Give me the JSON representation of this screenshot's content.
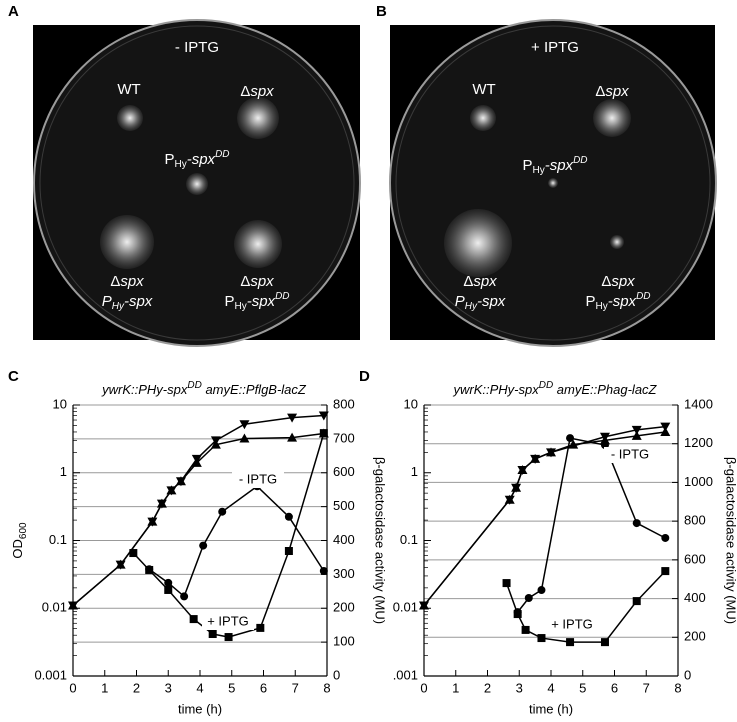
{
  "plates": [
    {
      "letter": "A",
      "condition": "- IPTG",
      "labels": [
        [
          "WT"
        ],
        [
          "Δ",
          "spx"
        ],
        [
          "P",
          "Hy",
          "-",
          "spx",
          "DD"
        ],
        [
          "Δ",
          "spx"
        ],
        [
          "P",
          "Hy",
          "-spx"
        ],
        [
          "Δ",
          "spx"
        ],
        [
          "P",
          "Hy",
          "-",
          "spx",
          "DD"
        ]
      ]
    },
    {
      "letter": "B",
      "condition": "+ IPTG",
      "labels": [
        [
          "WT"
        ],
        [
          "Δ",
          "spx"
        ],
        [
          "P",
          "Hy",
          "-",
          "spx",
          "DD"
        ],
        [
          "Δ",
          "spx"
        ],
        [
          "P",
          "Hy",
          "-spx"
        ],
        [
          "Δ",
          "spx"
        ],
        [
          "P",
          "Hy",
          "-",
          "spx",
          "DD"
        ]
      ]
    }
  ],
  "chart_data": [
    {
      "type": "line",
      "letter": "C",
      "title_parts": [
        "ywrK::PHy-spx",
        "DD",
        " amyE::PflgB-lacZ"
      ],
      "xlabel": "time (h)",
      "ylabel_parts": [
        "OD",
        "600"
      ],
      "y2label": "β-galactosidase activity (MU)",
      "xlim": [
        0,
        8
      ],
      "xticks": [
        0,
        1,
        2,
        3,
        4,
        5,
        6,
        7,
        8
      ],
      "ylim": [
        0.001,
        10
      ],
      "yscale": "log",
      "yticks": [
        0.001,
        0.01,
        0.1,
        1,
        10
      ],
      "y2lim": [
        0,
        800
      ],
      "y2ticks": [
        0,
        100,
        200,
        300,
        400,
        500,
        600,
        700,
        800
      ],
      "grid": "y2",
      "annotations": [
        "- IPTG",
        "+ IPTG"
      ],
      "series": [
        {
          "marker": "triangle-down",
          "color": "#000000",
          "x": [
            0,
            1.5,
            2.5,
            2.8,
            3.1,
            3.4,
            3.9,
            4.5,
            5.4,
            6.9,
            7.9
          ],
          "values": [
            0.011,
            0.044,
            0.19,
            0.35,
            0.55,
            0.75,
            1.6,
            3,
            5.2,
            6.5,
            7
          ]
        },
        {
          "marker": "triangle-up",
          "color": "#000000",
          "x": [
            0,
            1.5,
            2.5,
            2.8,
            3.1,
            3.4,
            3.9,
            4.5,
            5.4,
            6.9,
            7.9
          ],
          "values": [
            0.011,
            0.044,
            0.19,
            0.35,
            0.55,
            0.75,
            1.4,
            2.6,
            3.2,
            3.3,
            3.8
          ]
        },
        {
          "marker": "circle",
          "color": "#000000",
          "axis": "y2",
          "x": [
            2.4,
            3.0,
            3.5,
            4.1,
            4.7,
            5.8,
            6.8,
            7.9
          ],
          "values": [
            315,
            275,
            235,
            385,
            485,
            560,
            470,
            310
          ]
        },
        {
          "marker": "square",
          "color": "#000000",
          "axis": "y2",
          "x": [
            1.9,
            2.4,
            3.0,
            3.8,
            4.4,
            4.9,
            5.9,
            6.8,
            7.9
          ],
          "values": [
            363,
            313,
            254,
            168,
            124,
            115,
            142,
            369,
            717
          ]
        }
      ]
    },
    {
      "type": "line",
      "letter": "D",
      "title_parts": [
        "ywrK::PHy-spx",
        "DD",
        " amyE::Phag-lacZ"
      ],
      "xlabel": "time (h)",
      "y2label": "β-galactosidase activity (MU)",
      "xlim": [
        0,
        8
      ],
      "xticks": [
        0,
        1,
        2,
        3,
        4,
        5,
        6,
        7,
        8
      ],
      "ylim": [
        0.001,
        10
      ],
      "yscale": "log",
      "yticks": [
        {
          "value": 0.001,
          "label": ".001"
        },
        0.01,
        0.1,
        1,
        10
      ],
      "y2lim": [
        0,
        1400
      ],
      "y2ticks": [
        0,
        200,
        400,
        600,
        800,
        1000,
        1200,
        1400
      ],
      "grid": "y2",
      "annotations": [
        "- IPTG",
        "+ IPTG"
      ],
      "series": [
        {
          "marker": "triangle-down",
          "color": "#000000",
          "x": [
            0,
            2.7,
            2.9,
            3.1,
            3.5,
            4.0,
            5.7,
            6.7,
            7.6
          ],
          "values": [
            0.011,
            0.4,
            0.6,
            1.1,
            1.6,
            2.0,
            3.4,
            4.3,
            4.8
          ]
        },
        {
          "marker": "triangle-up",
          "color": "#000000",
          "x": [
            0,
            2.7,
            2.9,
            3.1,
            3.5,
            4.0,
            4.7,
            5.7,
            6.7,
            7.6
          ],
          "values": [
            0.011,
            0.4,
            0.6,
            1.1,
            1.6,
            2.0,
            2.6,
            3.0,
            3.5,
            4.0
          ]
        },
        {
          "marker": "circle",
          "color": "#000000",
          "axis": "y2",
          "x": [
            2.95,
            3.3,
            3.7,
            4.6,
            5.7,
            6.7,
            7.6
          ],
          "values": [
            330,
            403,
            444,
            1229,
            1193,
            790,
            713
          ]
        },
        {
          "marker": "square",
          "color": "#000000",
          "axis": "y2",
          "x": [
            2.6,
            2.95,
            3.2,
            3.7,
            4.6,
            5.7,
            6.7,
            7.6
          ],
          "values": [
            480,
            320,
            238,
            196,
            175,
            175,
            387,
            542
          ]
        }
      ]
    }
  ]
}
